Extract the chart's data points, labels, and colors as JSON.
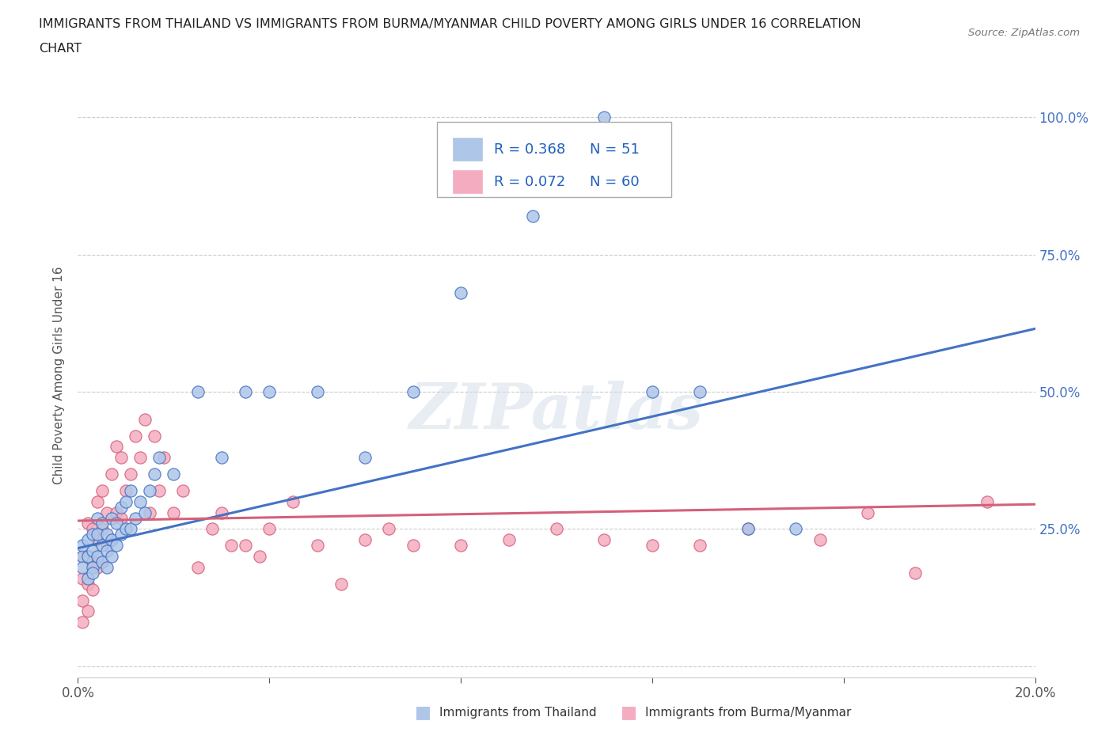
{
  "title_line1": "IMMIGRANTS FROM THAILAND VS IMMIGRANTS FROM BURMA/MYANMAR CHILD POVERTY AMONG GIRLS UNDER 16 CORRELATION",
  "title_line2": "CHART",
  "source": "Source: ZipAtlas.com",
  "ylabel": "Child Poverty Among Girls Under 16",
  "xlim": [
    0.0,
    0.2
  ],
  "ylim": [
    -0.02,
    1.08
  ],
  "xticks": [
    0.0,
    0.04,
    0.08,
    0.12,
    0.16,
    0.2
  ],
  "xticklabels": [
    "0.0%",
    "",
    "",
    "",
    "",
    "20.0%"
  ],
  "ytick_positions": [
    0.0,
    0.25,
    0.5,
    0.75,
    1.0
  ],
  "ytick_labels_right": [
    "",
    "25.0%",
    "50.0%",
    "75.0%",
    "100.0%"
  ],
  "thailand_color_fill": "#aec6e8",
  "thailand_color_edge": "#4472c4",
  "burma_color_fill": "#f4adc0",
  "burma_color_edge": "#d4607a",
  "thailand_line_color": "#4472c4",
  "burma_line_color": "#d4607a",
  "thailand_R": 0.368,
  "thailand_N": 51,
  "burma_R": 0.072,
  "burma_N": 60,
  "watermark_text": "ZIPatlas",
  "background_color": "#ffffff",
  "grid_color": "#cccccc",
  "legend_text_color": "#2060c0",
  "thailand_scatter_x": [
    0.001,
    0.001,
    0.001,
    0.002,
    0.002,
    0.002,
    0.003,
    0.003,
    0.003,
    0.003,
    0.004,
    0.004,
    0.004,
    0.005,
    0.005,
    0.005,
    0.006,
    0.006,
    0.006,
    0.007,
    0.007,
    0.007,
    0.008,
    0.008,
    0.009,
    0.009,
    0.01,
    0.01,
    0.011,
    0.011,
    0.012,
    0.013,
    0.014,
    0.015,
    0.016,
    0.017,
    0.02,
    0.025,
    0.03,
    0.035,
    0.04,
    0.05,
    0.06,
    0.07,
    0.08,
    0.095,
    0.11,
    0.12,
    0.13,
    0.14,
    0.15
  ],
  "thailand_scatter_y": [
    0.2,
    0.22,
    0.18,
    0.16,
    0.2,
    0.23,
    0.18,
    0.21,
    0.24,
    0.17,
    0.2,
    0.24,
    0.27,
    0.19,
    0.22,
    0.26,
    0.18,
    0.21,
    0.24,
    0.2,
    0.23,
    0.27,
    0.22,
    0.26,
    0.24,
    0.29,
    0.25,
    0.3,
    0.25,
    0.32,
    0.27,
    0.3,
    0.28,
    0.32,
    0.35,
    0.38,
    0.35,
    0.5,
    0.38,
    0.5,
    0.5,
    0.5,
    0.38,
    0.5,
    0.68,
    0.82,
    1.0,
    0.5,
    0.5,
    0.25,
    0.25
  ],
  "burma_scatter_x": [
    0.001,
    0.001,
    0.001,
    0.001,
    0.002,
    0.002,
    0.002,
    0.002,
    0.003,
    0.003,
    0.003,
    0.004,
    0.004,
    0.004,
    0.005,
    0.005,
    0.005,
    0.006,
    0.006,
    0.007,
    0.007,
    0.008,
    0.008,
    0.009,
    0.009,
    0.01,
    0.011,
    0.012,
    0.013,
    0.014,
    0.015,
    0.016,
    0.017,
    0.018,
    0.02,
    0.022,
    0.025,
    0.028,
    0.03,
    0.032,
    0.035,
    0.038,
    0.04,
    0.045,
    0.05,
    0.055,
    0.06,
    0.065,
    0.07,
    0.08,
    0.09,
    0.1,
    0.11,
    0.12,
    0.13,
    0.14,
    0.155,
    0.165,
    0.175,
    0.19
  ],
  "burma_scatter_y": [
    0.08,
    0.12,
    0.16,
    0.2,
    0.1,
    0.15,
    0.2,
    0.26,
    0.14,
    0.19,
    0.25,
    0.18,
    0.23,
    0.3,
    0.19,
    0.25,
    0.32,
    0.22,
    0.28,
    0.23,
    0.35,
    0.28,
    0.4,
    0.27,
    0.38,
    0.32,
    0.35,
    0.42,
    0.38,
    0.45,
    0.28,
    0.42,
    0.32,
    0.38,
    0.28,
    0.32,
    0.18,
    0.25,
    0.28,
    0.22,
    0.22,
    0.2,
    0.25,
    0.3,
    0.22,
    0.15,
    0.23,
    0.25,
    0.22,
    0.22,
    0.23,
    0.25,
    0.23,
    0.22,
    0.22,
    0.25,
    0.23,
    0.28,
    0.17,
    0.3
  ],
  "thailand_trend_x": [
    0.0,
    0.2
  ],
  "thailand_trend_y": [
    0.215,
    0.615
  ],
  "burma_trend_x": [
    0.0,
    0.2
  ],
  "burma_trend_y": [
    0.265,
    0.295
  ]
}
